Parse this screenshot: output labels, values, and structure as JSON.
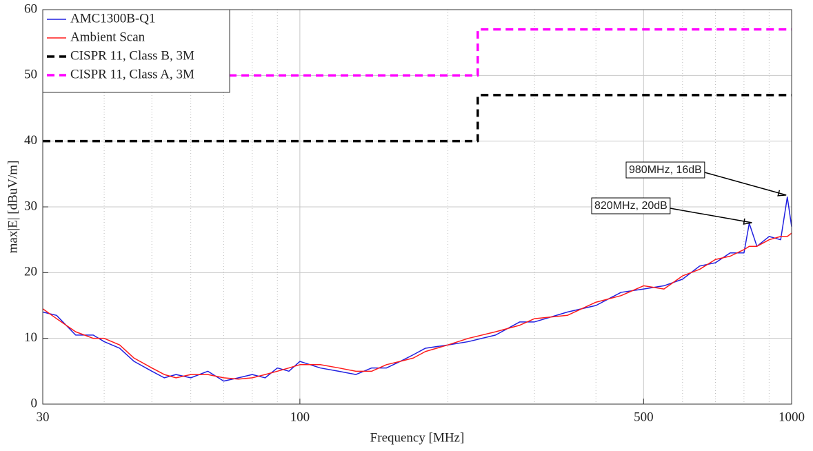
{
  "chart_data": {
    "type": "line",
    "xlabel": "Frequency [MHz]",
    "ylabel": "max|E| [dBuV/m]",
    "xscale": "log",
    "xlim": [
      30,
      1000
    ],
    "ylim": [
      0,
      60
    ],
    "xticks": [
      30,
      100,
      500,
      1000
    ],
    "xminor": [
      40,
      50,
      60,
      70,
      80,
      90,
      200,
      300,
      400,
      600,
      700,
      800,
      900
    ],
    "yticks": [
      0,
      10,
      20,
      30,
      40,
      50,
      60
    ],
    "grid": true,
    "legend": "upper-left",
    "series": [
      {
        "name": "AMC1300B-Q1",
        "color": "#2020e0",
        "style": "solid",
        "x": [
          30,
          32,
          35,
          38,
          40,
          43,
          46,
          50,
          53,
          56,
          60,
          65,
          70,
          75,
          80,
          85,
          90,
          95,
          100,
          110,
          120,
          130,
          140,
          150,
          160,
          170,
          180,
          200,
          220,
          250,
          280,
          300,
          350,
          400,
          450,
          500,
          550,
          600,
          650,
          700,
          750,
          800,
          820,
          850,
          900,
          950,
          980,
          1000
        ],
        "values": [
          14,
          13.5,
          10.5,
          10.5,
          9.5,
          8.5,
          6.5,
          5,
          4,
          4.5,
          4,
          5,
          3.5,
          4,
          4.5,
          4,
          5.5,
          5,
          6.5,
          5.5,
          5,
          4.5,
          5.5,
          5.5,
          6.5,
          7.5,
          8.5,
          9,
          9.5,
          10.5,
          12.5,
          12.5,
          14,
          15,
          17,
          17.5,
          18,
          19,
          21,
          21.5,
          23,
          23,
          27.5,
          24,
          25.5,
          25,
          31.5,
          27
        ]
      },
      {
        "name": "Ambient Scan",
        "color": "#ff1a1a",
        "style": "solid",
        "x": [
          30,
          32,
          35,
          38,
          40,
          43,
          46,
          50,
          53,
          56,
          60,
          65,
          70,
          75,
          80,
          85,
          90,
          95,
          100,
          110,
          120,
          130,
          140,
          150,
          160,
          170,
          180,
          200,
          220,
          250,
          280,
          300,
          350,
          400,
          450,
          500,
          550,
          600,
          650,
          700,
          750,
          800,
          820,
          850,
          900,
          950,
          980,
          1000
        ],
        "values": [
          14.5,
          13,
          11,
          10,
          10,
          9,
          7,
          5.5,
          4.5,
          4,
          4.5,
          4.5,
          4,
          3.8,
          4,
          4.5,
          5,
          5.5,
          6,
          6,
          5.5,
          5,
          5,
          6,
          6.5,
          7,
          8,
          9,
          10,
          11,
          12,
          13,
          13.5,
          15.5,
          16.5,
          18,
          17.5,
          19.5,
          20.5,
          22,
          22.5,
          23.5,
          24,
          24,
          25,
          25.5,
          25.5,
          26
        ]
      },
      {
        "name": "CISPR 11, Class B, 3M",
        "color": "#000000",
        "style": "dashed",
        "x": [
          30,
          230,
          230,
          1000
        ],
        "values": [
          40,
          40,
          47,
          47
        ]
      },
      {
        "name": "CISPR 11, Class A, 3M",
        "color": "#ff00ff",
        "style": "dashed",
        "x": [
          30,
          230,
          230,
          1000
        ],
        "values": [
          50,
          50,
          57,
          57
        ]
      }
    ],
    "annotations": [
      {
        "text": "980MHz, 16dB",
        "x": 975,
        "y": 31.8
      },
      {
        "text": "820MHz, 20dB",
        "x": 830,
        "y": 27.6
      }
    ]
  }
}
